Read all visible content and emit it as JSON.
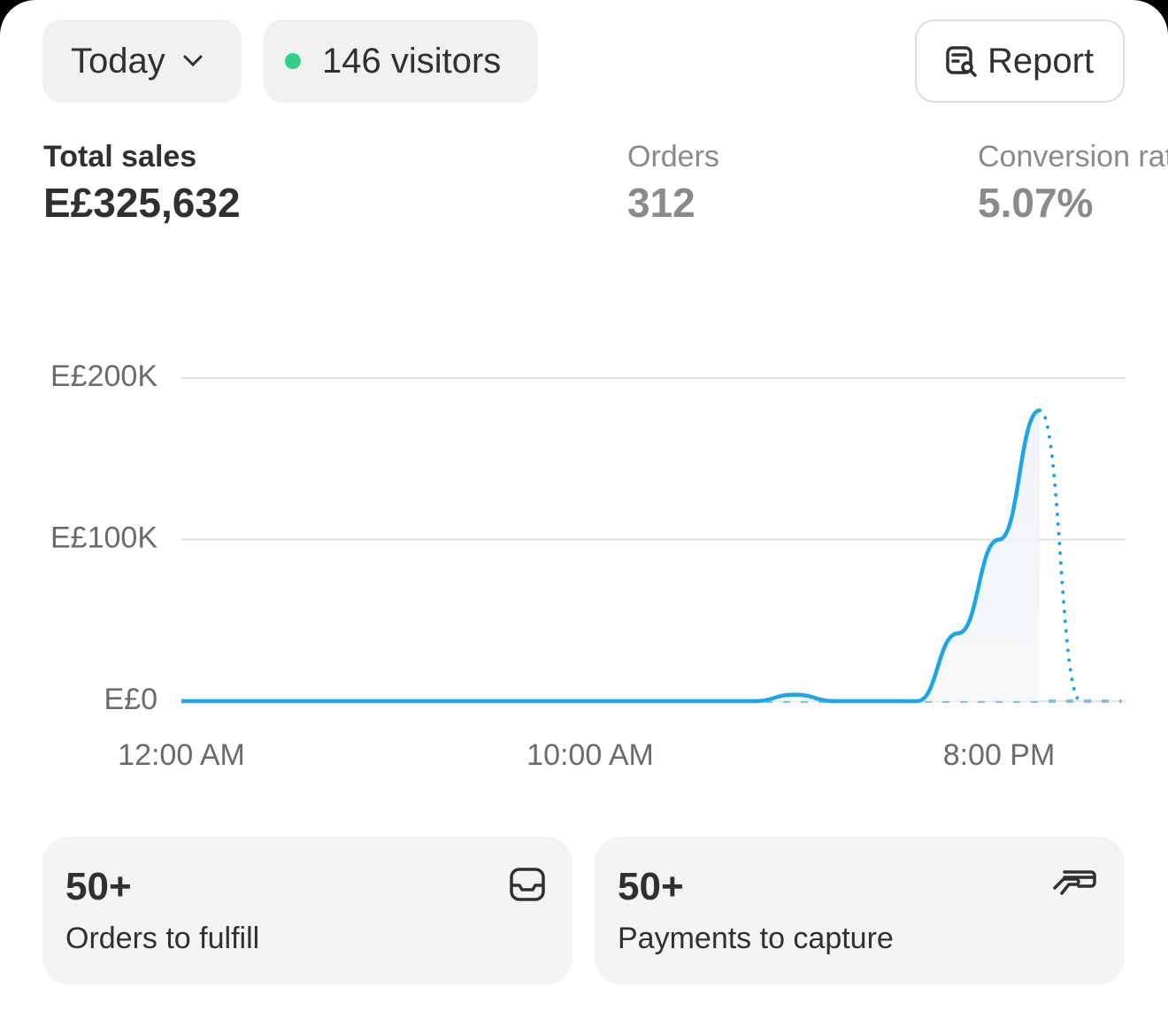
{
  "header": {
    "period": "Today",
    "visitors": "146 visitors",
    "report": "Report"
  },
  "metrics": [
    {
      "label": "Total sales",
      "value": "E£325,632"
    },
    {
      "label": "Orders",
      "value": "312"
    },
    {
      "label": "Conversion rate",
      "value": "5.07%"
    }
  ],
  "chart_data": {
    "type": "line",
    "x": [
      0,
      1,
      2,
      3,
      4,
      5,
      6,
      7,
      8,
      9,
      10,
      11,
      12,
      13,
      14,
      15,
      16,
      17,
      18,
      19,
      20,
      21,
      22,
      23
    ],
    "xlim": [
      0,
      23
    ],
    "xticks": [
      {
        "value": 0,
        "label": "12:00 AM"
      },
      {
        "value": 10,
        "label": "10:00 AM"
      },
      {
        "value": 20,
        "label": "8:00 PM"
      }
    ],
    "ylim": [
      0,
      200000
    ],
    "yticks": [
      {
        "value": 0,
        "label": "E£0"
      },
      {
        "value": 100000,
        "label": "E£100K"
      },
      {
        "value": 200000,
        "label": "E£200K"
      }
    ],
    "grid": true,
    "series": [
      {
        "color": "#84c3df",
        "style": "dashed",
        "values": [
          0,
          0,
          0,
          0,
          0,
          0,
          0,
          0,
          0,
          0,
          0,
          0,
          0,
          0,
          0,
          0,
          0,
          0,
          0,
          0,
          0,
          0,
          0,
          0
        ]
      },
      {
        "color": "#1ba6e8",
        "style": "solid",
        "area": true,
        "values": [
          0,
          0,
          0,
          0,
          0,
          0,
          0,
          0,
          0,
          0,
          0,
          0,
          0,
          0,
          0,
          4000,
          0,
          0,
          0,
          42000,
          100000,
          180000,
          null,
          null
        ]
      },
      {
        "color": "#1ba6e8",
        "style": "dotted",
        "values": [
          null,
          null,
          null,
          null,
          null,
          null,
          null,
          null,
          null,
          null,
          null,
          null,
          null,
          null,
          null,
          null,
          null,
          null,
          null,
          null,
          null,
          180000,
          0,
          null
        ]
      }
    ]
  },
  "cards": [
    {
      "value": "50+",
      "label": "Orders to fulfill"
    },
    {
      "value": "50+",
      "label": "Payments to capture"
    }
  ]
}
